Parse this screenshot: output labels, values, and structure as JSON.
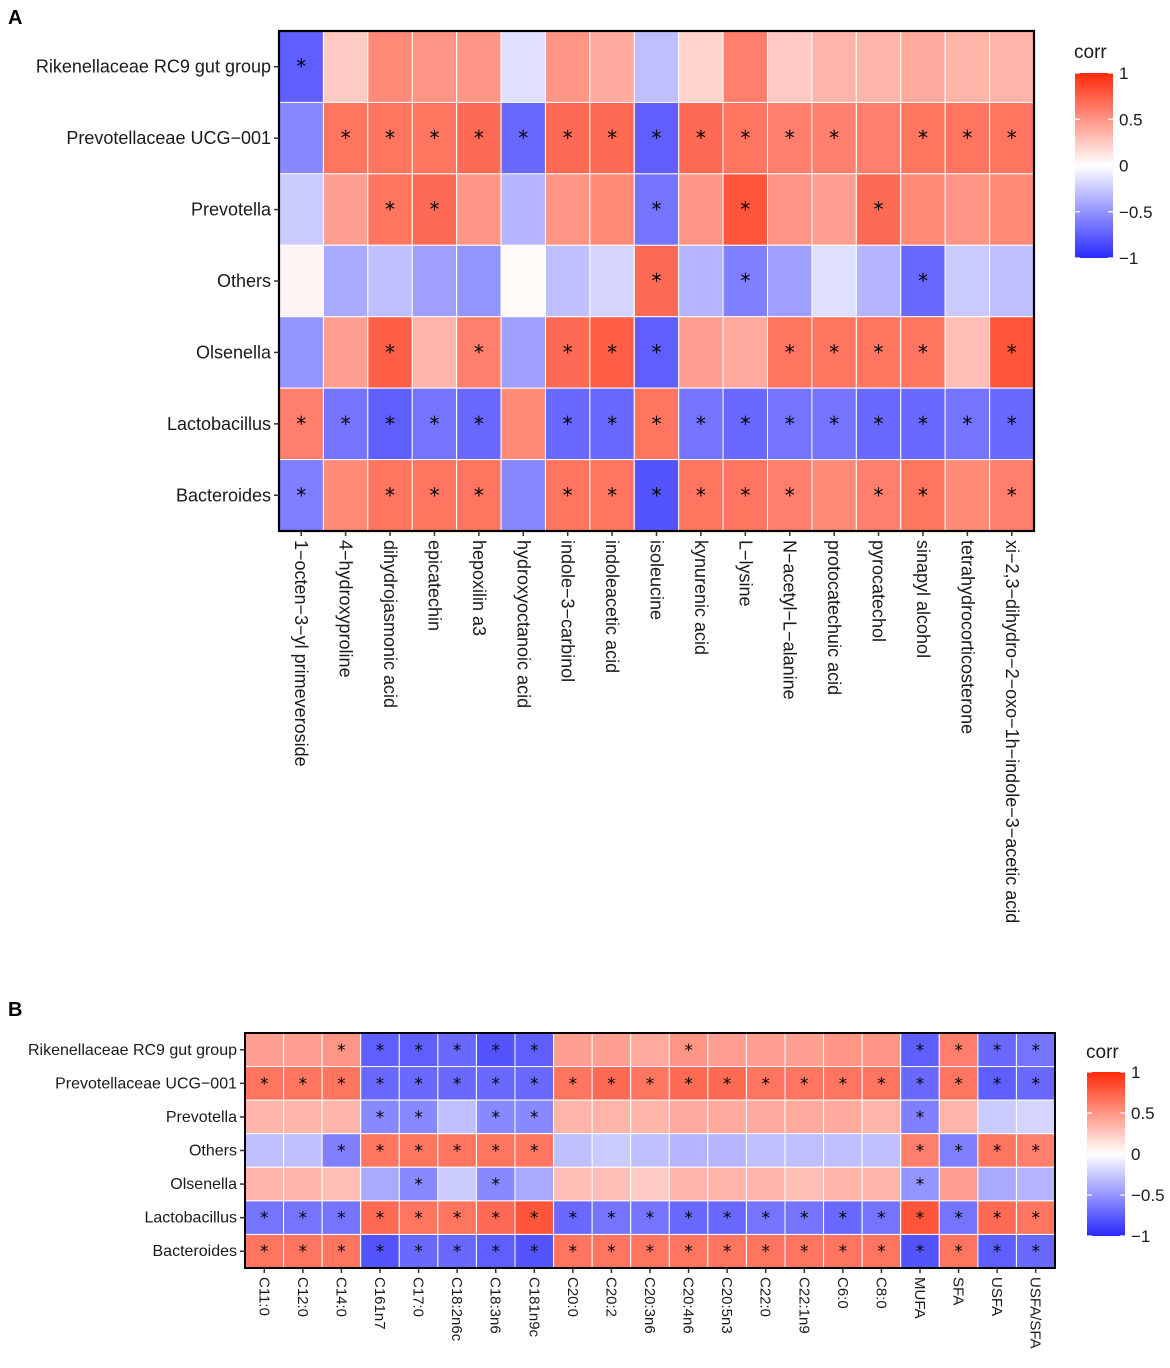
{
  "chart_data": [
    {
      "panel": "A",
      "type": "heatmap",
      "title": "",
      "rows": [
        "Rikenellaceae RC9 gut group",
        "Prevotellaceae UCG−001",
        "Prevotella",
        "Others",
        "Olsenella",
        "Lactobacillus",
        "Bacteroides"
      ],
      "columns": [
        "1−octen−3−yl primeveroside",
        "4−hydroxyproline",
        "dihydrojasmonic acid",
        "epicatechin",
        "hepoxilin a3",
        "hydroxyoctanoic acid",
        "indole−3−carbinol",
        "indoleacetic acid",
        "isoleucine",
        "kynurenic acid",
        "L−lysine",
        "N−acetyl−L−alanine",
        "protocatechuic acid",
        "pyrocatechol",
        "sinapyl alcohol",
        "tetrahydrocorticosterone",
        "xi−2,3−dihydro−2−oxo−1h−indole−3−acetic acid"
      ],
      "values": [
        [
          -0.75,
          0.25,
          0.55,
          0.5,
          0.5,
          -0.15,
          0.5,
          0.4,
          -0.3,
          0.2,
          0.6,
          0.25,
          0.35,
          0.35,
          0.4,
          0.35,
          0.35
        ],
        [
          -0.55,
          0.65,
          0.65,
          0.65,
          0.7,
          -0.7,
          0.7,
          0.7,
          -0.75,
          0.7,
          0.65,
          0.6,
          0.6,
          0.6,
          0.65,
          0.65,
          0.65
        ],
        [
          -0.25,
          0.45,
          0.65,
          0.7,
          0.5,
          -0.35,
          0.5,
          0.55,
          -0.65,
          0.5,
          0.8,
          0.5,
          0.45,
          0.7,
          0.55,
          0.5,
          0.55
        ],
        [
          0.05,
          -0.4,
          -0.3,
          -0.45,
          -0.5,
          0.03,
          -0.3,
          -0.2,
          0.7,
          -0.35,
          -0.6,
          -0.45,
          -0.15,
          -0.35,
          -0.7,
          -0.25,
          -0.3
        ],
        [
          -0.5,
          0.45,
          0.75,
          0.35,
          0.6,
          -0.45,
          0.7,
          0.75,
          -0.75,
          0.45,
          0.4,
          0.65,
          0.65,
          0.65,
          0.65,
          0.3,
          0.8
        ],
        [
          0.6,
          -0.65,
          -0.75,
          -0.65,
          -0.7,
          0.55,
          -0.7,
          -0.7,
          0.65,
          -0.65,
          -0.7,
          -0.65,
          -0.65,
          -0.7,
          -0.7,
          -0.65,
          -0.7
        ],
        [
          -0.6,
          0.55,
          0.65,
          0.65,
          0.65,
          -0.55,
          0.65,
          0.65,
          -0.8,
          0.65,
          0.65,
          0.6,
          0.55,
          0.6,
          0.65,
          0.55,
          0.6
        ]
      ],
      "significant": [
        [
          true,
          false,
          false,
          false,
          false,
          false,
          false,
          false,
          false,
          false,
          false,
          false,
          false,
          false,
          false,
          false,
          false
        ],
        [
          false,
          true,
          true,
          true,
          true,
          true,
          true,
          true,
          true,
          true,
          true,
          true,
          true,
          false,
          true,
          true,
          true
        ],
        [
          false,
          false,
          true,
          true,
          false,
          false,
          false,
          false,
          true,
          false,
          true,
          false,
          false,
          true,
          false,
          false,
          false
        ],
        [
          false,
          false,
          false,
          false,
          false,
          false,
          false,
          false,
          true,
          false,
          true,
          false,
          false,
          false,
          true,
          false,
          false
        ],
        [
          false,
          false,
          true,
          false,
          true,
          false,
          true,
          true,
          true,
          false,
          false,
          true,
          true,
          true,
          true,
          false,
          true
        ],
        [
          true,
          true,
          true,
          true,
          true,
          false,
          true,
          true,
          true,
          true,
          true,
          true,
          true,
          true,
          true,
          true,
          true
        ],
        [
          true,
          false,
          true,
          true,
          true,
          false,
          true,
          true,
          true,
          true,
          true,
          true,
          false,
          true,
          true,
          false,
          true
        ]
      ],
      "legend": {
        "title": "corr",
        "range": [
          -1,
          1
        ],
        "ticks": [
          "1",
          "0.5",
          "0",
          "−0.5",
          "−1"
        ],
        "tick_values": [
          1,
          0.5,
          0,
          -0.5,
          -1
        ]
      }
    },
    {
      "panel": "B",
      "type": "heatmap",
      "title": "",
      "rows": [
        "Rikenellaceae RC9 gut group",
        "Prevotellaceae UCG−001",
        "Prevotella",
        "Others",
        "Olsenella",
        "Lactobacillus",
        "Bacteroides"
      ],
      "columns": [
        "C11:0",
        "C12:0",
        "C14:0",
        "C161n7",
        "C17:0",
        "C18:2n6c",
        "C18:3n6",
        "C181n9c",
        "C20:0",
        "C20:2",
        "C20:3n6",
        "C20:4n6",
        "C20:5n3",
        "C22:0",
        "C22:1n9",
        "C6:0",
        "C8:0",
        "MUFA",
        "SFA",
        "USFA",
        "USFA/SFA"
      ],
      "values": [
        [
          0.45,
          0.45,
          0.5,
          -0.75,
          -0.75,
          -0.7,
          -0.8,
          -0.75,
          0.45,
          0.45,
          0.4,
          0.5,
          0.45,
          0.45,
          0.45,
          0.5,
          0.5,
          -0.75,
          0.6,
          -0.7,
          -0.65
        ],
        [
          0.65,
          0.65,
          0.65,
          -0.7,
          -0.7,
          -0.7,
          -0.7,
          -0.7,
          0.65,
          0.7,
          0.65,
          0.7,
          0.7,
          0.65,
          0.65,
          0.65,
          0.65,
          -0.7,
          0.65,
          -0.75,
          -0.7
        ],
        [
          0.35,
          0.35,
          0.35,
          -0.55,
          -0.55,
          -0.3,
          -0.55,
          -0.55,
          0.35,
          0.35,
          0.35,
          0.4,
          0.4,
          0.4,
          0.4,
          0.4,
          0.35,
          -0.6,
          0.35,
          -0.25,
          -0.2
        ],
        [
          -0.3,
          -0.3,
          -0.6,
          0.65,
          0.65,
          0.65,
          0.65,
          0.65,
          -0.3,
          -0.25,
          -0.3,
          -0.35,
          -0.35,
          -0.3,
          -0.3,
          -0.3,
          -0.3,
          0.6,
          -0.6,
          0.65,
          0.6
        ],
        [
          0.35,
          0.35,
          0.3,
          -0.4,
          -0.55,
          -0.25,
          -0.55,
          -0.4,
          0.3,
          0.3,
          0.25,
          0.35,
          0.35,
          0.35,
          0.3,
          0.35,
          0.35,
          -0.5,
          0.45,
          -0.4,
          -0.35
        ],
        [
          -0.65,
          -0.65,
          -0.65,
          0.7,
          0.65,
          0.65,
          0.7,
          0.8,
          -0.7,
          -0.65,
          -0.65,
          -0.7,
          -0.7,
          -0.65,
          -0.65,
          -0.7,
          -0.65,
          0.8,
          -0.65,
          0.7,
          0.65
        ],
        [
          0.65,
          0.65,
          0.65,
          -0.8,
          -0.7,
          -0.7,
          -0.75,
          -0.8,
          0.65,
          0.65,
          0.65,
          0.65,
          0.65,
          0.65,
          0.65,
          0.65,
          0.65,
          -0.8,
          0.65,
          -0.75,
          -0.7
        ]
      ],
      "significant": [
        [
          false,
          false,
          true,
          true,
          true,
          true,
          true,
          true,
          false,
          false,
          false,
          true,
          false,
          false,
          false,
          false,
          false,
          true,
          true,
          true,
          true
        ],
        [
          true,
          true,
          true,
          true,
          true,
          true,
          true,
          true,
          true,
          true,
          true,
          true,
          true,
          true,
          true,
          true,
          true,
          true,
          true,
          true,
          true
        ],
        [
          false,
          false,
          false,
          true,
          true,
          false,
          true,
          true,
          false,
          false,
          false,
          false,
          false,
          false,
          false,
          false,
          false,
          true,
          false,
          false,
          false
        ],
        [
          false,
          false,
          true,
          true,
          true,
          true,
          true,
          true,
          false,
          false,
          false,
          false,
          false,
          false,
          false,
          false,
          false,
          true,
          true,
          true,
          true
        ],
        [
          false,
          false,
          false,
          false,
          true,
          false,
          true,
          false,
          false,
          false,
          false,
          false,
          false,
          false,
          false,
          false,
          false,
          true,
          false,
          false,
          false
        ],
        [
          true,
          true,
          true,
          true,
          true,
          true,
          true,
          true,
          true,
          true,
          true,
          true,
          true,
          true,
          true,
          true,
          true,
          true,
          true,
          true,
          true
        ],
        [
          true,
          true,
          true,
          true,
          true,
          true,
          true,
          true,
          true,
          true,
          true,
          true,
          true,
          true,
          true,
          true,
          true,
          true,
          true,
          true,
          true
        ]
      ],
      "legend": {
        "title": "corr",
        "range": [
          -1,
          1
        ],
        "ticks": [
          "1",
          "0.5",
          "0",
          "−0.5",
          "−1"
        ],
        "tick_values": [
          1,
          0.5,
          0,
          -0.5,
          -1
        ]
      }
    }
  ],
  "star_symbol": "*",
  "colors": {
    "low": "#2929ff",
    "mid": "#ffffff",
    "high": "#ff2a0a",
    "frame": "#000000",
    "grid": "#ffffff"
  }
}
